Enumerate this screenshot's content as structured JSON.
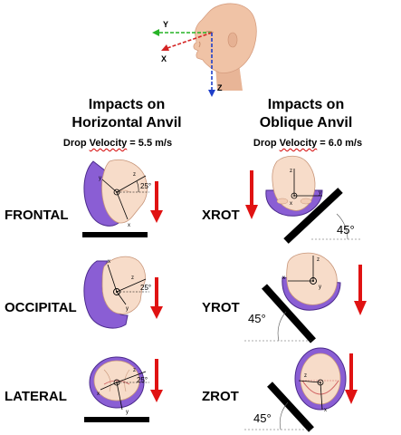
{
  "axes": {
    "y": "Y",
    "x": "X",
    "z": "Z"
  },
  "left": {
    "title_line1": "Impacts on",
    "title_line2": "Horizontal Anvil",
    "velocity_a": "Drop ",
    "velocity_b": "Velocity",
    "velocity_c": " = 5.5 m/s",
    "rows": [
      {
        "label": "FRONTAL",
        "angle": "25°"
      },
      {
        "label": "OCCIPITAL",
        "angle": "25°"
      },
      {
        "label": "LATERAL",
        "angle": "25°"
      }
    ]
  },
  "right": {
    "title_line1": "Impacts on",
    "title_line2": "Oblique Anvil",
    "velocity_a": "Drop ",
    "velocity_b": "Velocity",
    "velocity_c": " = 6.0 m/s",
    "rows": [
      {
        "label": "XROT",
        "angle": "45°"
      },
      {
        "label": "YROT",
        "angle": "45°"
      },
      {
        "label": "ZROT",
        "angle": "45°"
      }
    ]
  },
  "mini_axes": {
    "x": "x",
    "y": "y",
    "z": "z"
  },
  "colors": {
    "head_skin": "#f2c7ab",
    "skin_light": "#f7dcc9",
    "helmet": "#8a5ed4",
    "arrow": "#e01212",
    "axis_y": "#27b327",
    "axis_x": "#d42424",
    "axis_z": "#1f3fc9",
    "anvil": "#000000"
  }
}
